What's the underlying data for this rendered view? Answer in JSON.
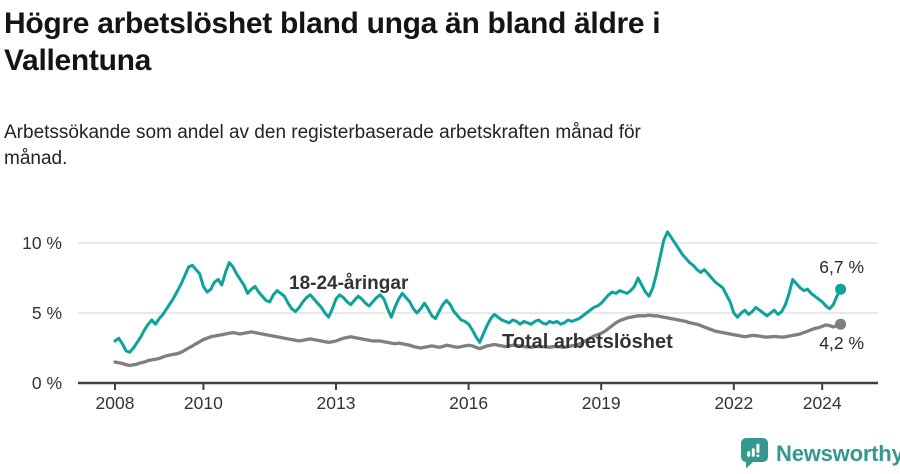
{
  "header": {
    "title_lines": [
      "Högre arbetslöshet bland unga än bland äldre i",
      "Vallentuna"
    ],
    "subtitle_lines": [
      "Arbetssökande som andel av den registerbaserade arbetskraften månad för",
      "månad."
    ]
  },
  "colors": {
    "accent_teal": "#0da39a",
    "series_gray": "#7f7f7f",
    "grid": "#dcdcdc",
    "axis": "#3f3f3f",
    "brand_teal": "#35988f"
  },
  "footer": {
    "brand": "Newsworthy",
    "logo_icon": "speech-bubble-bar-chart-icon"
  },
  "chart_data": {
    "type": "line",
    "title": "Högre arbetslöshet bland unga än bland äldre i Vallentuna",
    "subtitle": "Arbetssökande som andel av den registerbaserade arbetskraften månad för månad.",
    "xlabel": "",
    "ylabel": "",
    "x_unit": "month",
    "x_start_year": 2008,
    "x_end": "2024-06",
    "ylim": [
      0,
      11.2
    ],
    "grid": "horizontal",
    "legend_position": "inline-labels",
    "yticks": [
      {
        "value": 0,
        "label": "0 %"
      },
      {
        "value": 5,
        "label": "5 %"
      },
      {
        "value": 10,
        "label": "10 %"
      }
    ],
    "xticks": [
      {
        "value": 2008,
        "label": "2008"
      },
      {
        "value": 2010,
        "label": "2010"
      },
      {
        "value": 2013,
        "label": "2013"
      },
      {
        "value": 2016,
        "label": "2016"
      },
      {
        "value": 2019,
        "label": "2019"
      },
      {
        "value": 2022,
        "label": "2022"
      },
      {
        "value": 2024,
        "label": "2024"
      }
    ],
    "series": [
      {
        "name": "Total arbetslöshet",
        "color": "#7f7f7f",
        "end_label": "4,2 %",
        "end_value": 4.2,
        "values": [
          1.5,
          1.45,
          1.4,
          1.3,
          1.25,
          1.3,
          1.35,
          1.45,
          1.5,
          1.6,
          1.65,
          1.7,
          1.75,
          1.85,
          1.95,
          2.0,
          2.05,
          2.1,
          2.2,
          2.35,
          2.5,
          2.65,
          2.8,
          2.95,
          3.1,
          3.2,
          3.3,
          3.35,
          3.4,
          3.45,
          3.5,
          3.55,
          3.6,
          3.55,
          3.5,
          3.55,
          3.6,
          3.65,
          3.6,
          3.55,
          3.5,
          3.45,
          3.4,
          3.35,
          3.3,
          3.25,
          3.2,
          3.15,
          3.1,
          3.05,
          3.0,
          3.05,
          3.1,
          3.15,
          3.1,
          3.05,
          3.0,
          2.95,
          2.9,
          2.95,
          3.0,
          3.1,
          3.2,
          3.25,
          3.3,
          3.25,
          3.2,
          3.15,
          3.1,
          3.05,
          3.0,
          3.0,
          3.0,
          2.95,
          2.9,
          2.85,
          2.8,
          2.85,
          2.8,
          2.75,
          2.7,
          2.6,
          2.55,
          2.5,
          2.55,
          2.6,
          2.65,
          2.6,
          2.55,
          2.6,
          2.7,
          2.65,
          2.6,
          2.55,
          2.6,
          2.65,
          2.7,
          2.65,
          2.55,
          2.45,
          2.55,
          2.65,
          2.7,
          2.75,
          2.7,
          2.65,
          2.6,
          2.65,
          2.7,
          2.68,
          2.65,
          2.6,
          2.58,
          2.55,
          2.6,
          2.62,
          2.6,
          2.58,
          2.55,
          2.6,
          2.6,
          2.58,
          2.55,
          2.6,
          2.65,
          2.7,
          2.78,
          2.9,
          3.05,
          3.2,
          3.35,
          3.45,
          3.55,
          3.7,
          3.9,
          4.1,
          4.3,
          4.45,
          4.55,
          4.65,
          4.7,
          4.75,
          4.8,
          4.8,
          4.8,
          4.85,
          4.8,
          4.8,
          4.75,
          4.7,
          4.65,
          4.6,
          4.55,
          4.5,
          4.45,
          4.4,
          4.3,
          4.25,
          4.2,
          4.1,
          4.0,
          3.9,
          3.8,
          3.7,
          3.65,
          3.6,
          3.55,
          3.5,
          3.45,
          3.4,
          3.35,
          3.3,
          3.35,
          3.4,
          3.38,
          3.35,
          3.3,
          3.28,
          3.3,
          3.32,
          3.3,
          3.28,
          3.3,
          3.35,
          3.4,
          3.45,
          3.5,
          3.6,
          3.7,
          3.8,
          3.9,
          3.95,
          4.05,
          4.15,
          4.1,
          4.0,
          4.1,
          4.2
        ]
      },
      {
        "name": "18-24-åringar",
        "color": "#0da39a",
        "end_label": "6,7 %",
        "end_value": 6.7,
        "values": [
          3.0,
          3.2,
          2.8,
          2.3,
          2.2,
          2.5,
          2.9,
          3.3,
          3.8,
          4.2,
          4.5,
          4.2,
          4.6,
          4.9,
          5.3,
          5.7,
          6.1,
          6.6,
          7.1,
          7.7,
          8.3,
          8.4,
          8.1,
          7.8,
          6.9,
          6.5,
          6.7,
          7.2,
          7.4,
          7.0,
          7.9,
          8.6,
          8.3,
          7.8,
          7.4,
          7.0,
          6.4,
          6.7,
          6.9,
          6.5,
          6.2,
          5.9,
          5.8,
          6.3,
          6.6,
          6.4,
          6.2,
          5.7,
          5.3,
          5.1,
          5.4,
          5.8,
          6.1,
          6.3,
          6.0,
          5.7,
          5.4,
          5.0,
          4.7,
          5.3,
          6.0,
          6.3,
          6.1,
          5.8,
          5.6,
          5.9,
          6.2,
          6.0,
          5.7,
          5.5,
          5.8,
          6.1,
          6.3,
          6.0,
          5.3,
          4.7,
          5.4,
          6.0,
          6.4,
          6.1,
          5.8,
          5.3,
          5.0,
          5.3,
          5.7,
          5.3,
          4.8,
          4.6,
          5.1,
          5.6,
          5.9,
          5.6,
          5.1,
          4.8,
          4.5,
          4.4,
          4.2,
          3.8,
          3.3,
          2.9,
          3.5,
          4.1,
          4.6,
          4.9,
          4.7,
          4.5,
          4.4,
          4.3,
          4.5,
          4.4,
          4.2,
          4.4,
          4.3,
          4.2,
          4.4,
          4.5,
          4.3,
          4.2,
          4.4,
          4.3,
          4.4,
          4.2,
          4.3,
          4.5,
          4.4,
          4.5,
          4.6,
          4.8,
          5.0,
          5.2,
          5.4,
          5.5,
          5.7,
          6.0,
          6.3,
          6.5,
          6.4,
          6.6,
          6.5,
          6.4,
          6.6,
          6.9,
          7.5,
          7.0,
          6.5,
          6.2,
          6.8,
          7.8,
          9.0,
          10.2,
          10.8,
          10.4,
          10.0,
          9.6,
          9.2,
          8.9,
          8.6,
          8.4,
          8.1,
          7.9,
          8.1,
          7.8,
          7.5,
          7.2,
          7.0,
          6.8,
          6.3,
          5.8,
          5.0,
          4.7,
          5.0,
          5.2,
          4.9,
          5.1,
          5.4,
          5.2,
          5.0,
          4.8,
          5.0,
          5.2,
          4.9,
          5.1,
          5.6,
          6.4,
          7.4,
          7.1,
          6.8,
          6.6,
          6.7,
          6.4,
          6.2,
          6.0,
          5.8,
          5.5,
          5.3,
          5.6,
          6.2,
          6.7
        ]
      }
    ]
  }
}
